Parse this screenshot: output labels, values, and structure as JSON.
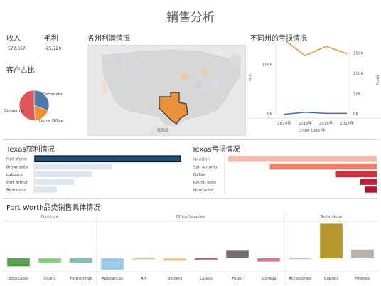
{
  "page": {
    "title": "销售分析"
  },
  "kpis": {
    "revenue_label": "收入",
    "revenue_value": "572,657",
    "profit_label": "毛利",
    "profit_value": "-25,729"
  },
  "customer": {
    "title": "客户占比",
    "segments": [
      {
        "name": "Corporate",
        "share": 0.31,
        "color": "#4e79a7"
      },
      {
        "name": "Home Office",
        "share": 0.18,
        "color": "#f28e2b"
      },
      {
        "name": "Consumer",
        "share": 0.51,
        "color": "#e15759"
      }
    ]
  },
  "map": {
    "title": "各州利润情况",
    "label": "墨西哥"
  },
  "loss_trend": {
    "title": "不同州的亏损情况",
    "left_axis_label": "收入",
    "right_axis_label": "Profit",
    "x_label": "Order Date 年",
    "left_ticks": [
      "100K",
      "0K"
    ],
    "right_ticks": [
      "150K",
      "100K",
      "50K",
      "0K"
    ],
    "years": [
      "2014年",
      "2015年",
      "2016年",
      "2017年"
    ],
    "colors": {
      "orange": "#e9923b",
      "blue": "#3e6fa6"
    }
  },
  "chart_data": [
    {
      "type": "line",
      "x": [
        "2014年",
        "2015年",
        "2016年",
        "2017年"
      ],
      "y_left_range": [
        0,
        140000
      ],
      "y_right_range": [
        0,
        170000
      ],
      "series": [
        {
          "axis": "left",
          "values": [
            150000,
            118000,
            137000,
            122000
          ]
        },
        {
          "axis": "right",
          "values": [
            -1000,
            4000,
            1000,
            1000
          ]
        }
      ]
    },
    {
      "type": "bar",
      "title": "Texas获利情况",
      "categories": [
        "Fort Worth",
        "Brownsville",
        "Lubbock",
        "Port Arthur",
        "Beaumont"
      ],
      "values": [
        100,
        53,
        39,
        27,
        15
      ]
    },
    {
      "type": "bar",
      "title": "Texas亏损情况",
      "categories": [
        "Houston",
        "San Antonio",
        "Dallas",
        "Round Rock",
        "Huntsville"
      ],
      "values": [
        -100,
        -72,
        -28,
        -11,
        -8
      ]
    },
    {
      "type": "bar",
      "title": "Fort Worth品类销售具体情况",
      "groups": [
        {
          "name": "Furniture",
          "categories": [
            "Bookcases",
            "Chairs",
            "Furnishings"
          ],
          "values": [
            -30,
            -16,
            -16
          ]
        },
        {
          "name": "Office Supplies",
          "categories": [
            "Appliances",
            "Art",
            "Binders",
            "Labels",
            "Paper",
            "Storage"
          ],
          "values": [
            -42,
            -4,
            -9,
            -5,
            28,
            -12
          ]
        },
        {
          "name": "Technology",
          "categories": [
            "Accessories",
            "Copiers",
            "Phones"
          ],
          "values": [
            -3,
            128,
            32
          ]
        }
      ]
    }
  ],
  "texas_profit": {
    "title": "Texas获利情况",
    "selected": "Fort Worth"
  },
  "texas_loss": {
    "title": "Texas亏损情况"
  },
  "fortworth": {
    "title": "Fort Worth品类销售具体情况"
  }
}
